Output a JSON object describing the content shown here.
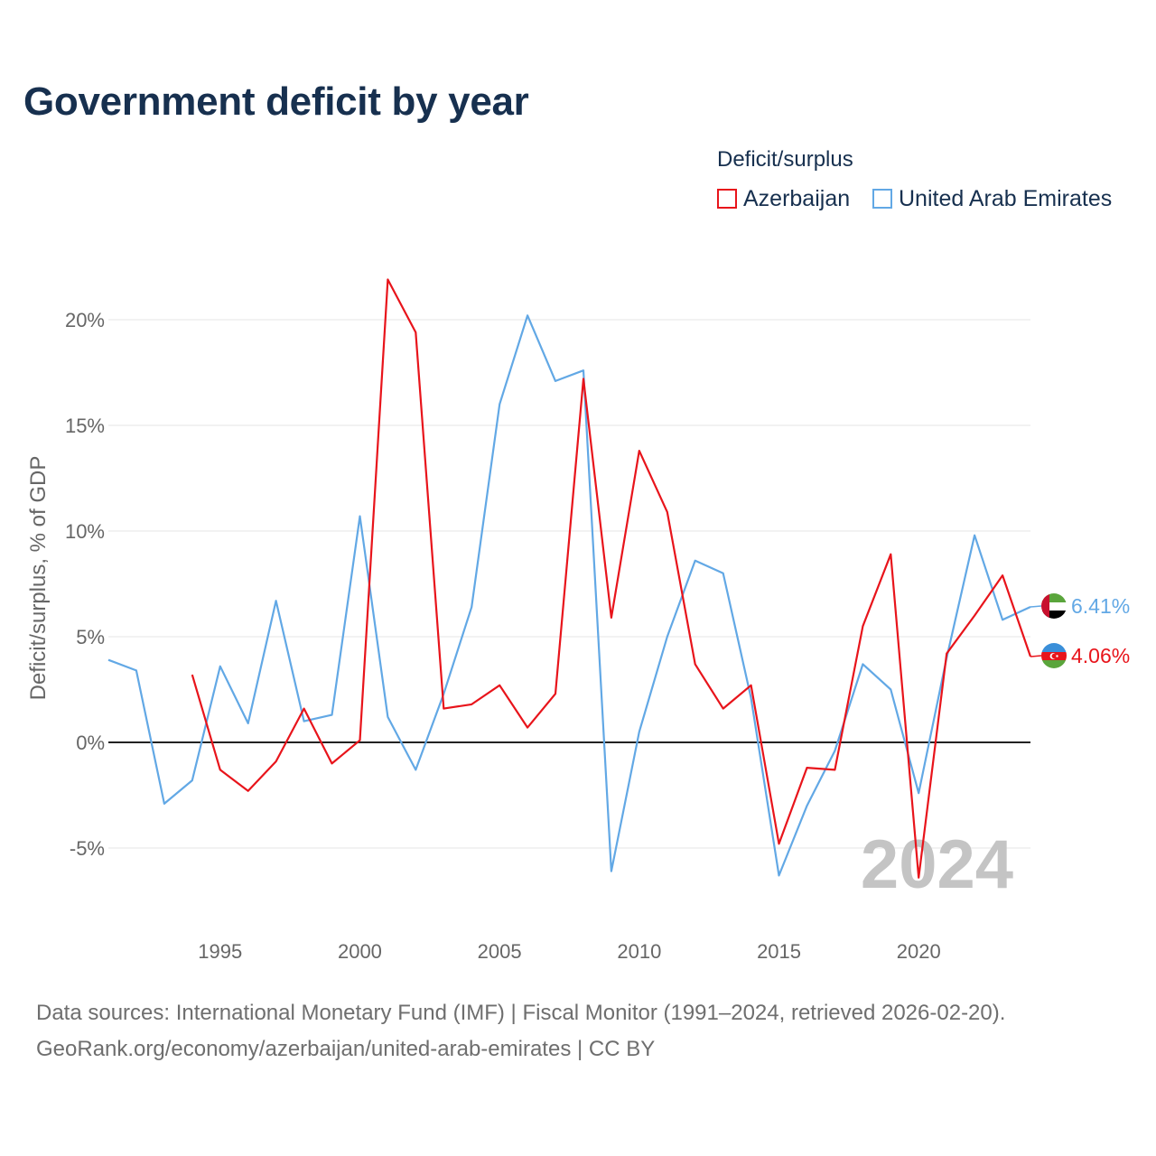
{
  "title": "Government deficit by year",
  "legend": {
    "title": "Deficit/surplus",
    "items": [
      {
        "name": "Azerbaijan",
        "color": "#e8141b"
      },
      {
        "name": "United Arab Emirates",
        "color": "#62a8e5"
      }
    ]
  },
  "sources": {
    "line1": "Data sources: International Monetary Fund (IMF) | Fiscal Monitor (1991–2024, retrieved 2026-02-20).",
    "line2": "GeoRank.org/economy/azerbaijan/united-arab-emirates | CC BY"
  },
  "chart_data": {
    "type": "line",
    "title": "Government deficit by year",
    "ylabel": "Deficit/surplus, % of GDP",
    "xlabel": "",
    "xlim": [
      1991,
      2024
    ],
    "ylim": [
      -8,
      22
    ],
    "x_ticks": [
      1995,
      2000,
      2005,
      2010,
      2015,
      2020
    ],
    "x_tick_labels": [
      "1995",
      "2000",
      "2005",
      "2010",
      "2015",
      "2020"
    ],
    "y_ticks": [
      -5,
      0,
      5,
      10,
      15,
      20
    ],
    "y_tick_labels": [
      "-5%",
      "0%",
      "5%",
      "10%",
      "15%",
      "20%"
    ],
    "grid": true,
    "watermark": "2024",
    "series": [
      {
        "name": "Azerbaijan",
        "color": "#e8141b",
        "end_label": "4.06%",
        "points": [
          [
            1994,
            3.2
          ],
          [
            1995,
            -1.3
          ],
          [
            1996,
            -2.3
          ],
          [
            1997,
            -0.9
          ],
          [
            1998,
            1.6
          ],
          [
            1999,
            -1.0
          ],
          [
            2000,
            0.1
          ],
          [
            2001,
            21.9
          ],
          [
            2002,
            19.4
          ],
          [
            2003,
            1.6
          ],
          [
            2004,
            1.8
          ],
          [
            2005,
            2.7
          ],
          [
            2006,
            0.7
          ],
          [
            2007,
            2.3
          ],
          [
            2008,
            17.2
          ],
          [
            2009,
            5.9
          ],
          [
            2010,
            13.8
          ],
          [
            2011,
            10.9
          ],
          [
            2012,
            3.7
          ],
          [
            2013,
            1.6
          ],
          [
            2014,
            2.7
          ],
          [
            2015,
            -4.8
          ],
          [
            2016,
            -1.2
          ],
          [
            2017,
            -1.3
          ],
          [
            2018,
            5.5
          ],
          [
            2019,
            8.9
          ],
          [
            2020,
            -6.4
          ],
          [
            2021,
            4.2
          ],
          [
            2022,
            6.0
          ],
          [
            2023,
            7.9
          ],
          [
            2024,
            4.06
          ]
        ]
      },
      {
        "name": "United Arab Emirates",
        "color": "#62a8e5",
        "end_label": "6.41%",
        "points": [
          [
            1991,
            3.9
          ],
          [
            1992,
            3.4
          ],
          [
            1993,
            -2.9
          ],
          [
            1994,
            -1.8
          ],
          [
            1995,
            3.6
          ],
          [
            1996,
            0.9
          ],
          [
            1997,
            6.7
          ],
          [
            1998,
            1.0
          ],
          [
            1999,
            1.3
          ],
          [
            2000,
            10.7
          ],
          [
            2001,
            1.2
          ],
          [
            2002,
            -1.3
          ],
          [
            2003,
            2.3
          ],
          [
            2004,
            6.4
          ],
          [
            2005,
            16.0
          ],
          [
            2006,
            20.2
          ],
          [
            2007,
            17.1
          ],
          [
            2008,
            17.6
          ],
          [
            2009,
            -6.1
          ],
          [
            2010,
            0.5
          ],
          [
            2011,
            5.0
          ],
          [
            2012,
            8.6
          ],
          [
            2013,
            8.0
          ],
          [
            2014,
            2.1
          ],
          [
            2015,
            -6.3
          ],
          [
            2016,
            -3.0
          ],
          [
            2017,
            -0.4
          ],
          [
            2018,
            3.7
          ],
          [
            2019,
            2.5
          ],
          [
            2020,
            -2.4
          ],
          [
            2021,
            4.0
          ],
          [
            2022,
            9.8
          ],
          [
            2023,
            5.8
          ],
          [
            2024,
            6.41
          ]
        ]
      }
    ]
  }
}
